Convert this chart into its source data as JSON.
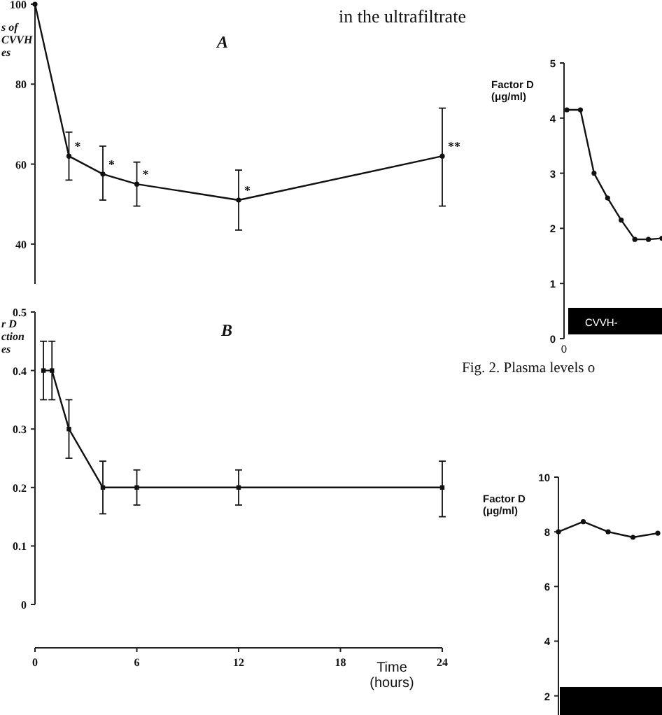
{
  "chart_data": [
    {
      "type": "line",
      "title": "A",
      "ylabel": "s of\nCVVH\nes",
      "xlim": [
        0,
        24
      ],
      "ylim": [
        30,
        100
      ],
      "yticks": [
        40,
        60,
        80,
        100
      ],
      "tick_labels": "y",
      "marker": "circle",
      "x": [
        0,
        2,
        4,
        6,
        12,
        24
      ],
      "series": [
        {
          "color": "#111111",
          "values": [
            100,
            62,
            57.5,
            55,
            51,
            62
          ],
          "errors": [
            null,
            [
              56,
              68
            ],
            [
              51,
              64.5
            ],
            [
              49.5,
              60.5
            ],
            [
              43.5,
              58.5
            ],
            [
              49.5,
              74
            ]
          ]
        }
      ],
      "annotations": [
        {
          "text": "*",
          "x": 2,
          "y": 62
        },
        {
          "text": "*",
          "x": 4,
          "y": 57.5
        },
        {
          "text": "*",
          "x": 6,
          "y": 55
        },
        {
          "text": "*",
          "x": 12,
          "y": 51
        },
        {
          "text": "**",
          "x": 24,
          "y": 62
        }
      ]
    },
    {
      "type": "line",
      "title": "B",
      "ylabel": "r D\nction\nes",
      "xlabel": "Time\n(hours)",
      "xlim": [
        0,
        24
      ],
      "ylim": [
        0,
        0.5
      ],
      "xticks": [
        0,
        6,
        12,
        18,
        24
      ],
      "yticks": [
        0,
        0.1,
        0.2,
        0.3,
        0.4,
        0.5
      ],
      "marker": "square",
      "x": [
        0.5,
        1,
        2,
        4,
        6,
        12,
        24
      ],
      "series": [
        {
          "color": "#111111",
          "values": [
            0.4,
            0.4,
            0.3,
            0.2,
            0.2,
            0.2,
            0.2
          ],
          "errors": [
            [
              0.35,
              0.45
            ],
            [
              0.35,
              0.45
            ],
            [
              0.25,
              0.35
            ],
            [
              0.155,
              0.245
            ],
            [
              0.17,
              0.23
            ],
            [
              0.17,
              0.23
            ],
            [
              0.15,
              0.245
            ]
          ]
        }
      ]
    },
    {
      "type": "line",
      "ylabel": "Factor D\n(μg/ml)",
      "ylim": [
        0,
        5
      ],
      "yticks": [
        0,
        1,
        2,
        3,
        4,
        5
      ],
      "marker": "circle",
      "categories": [
        null,
        null,
        null,
        null,
        null,
        null,
        null,
        null
      ],
      "series": [
        {
          "color": "#111111",
          "values": [
            4.15,
            4.15,
            3.0,
            2.55,
            2.15,
            1.8,
            1.8,
            1.82
          ]
        }
      ],
      "annotations": [
        "in the ultrafiltrate",
        "Fig. 2. Plasma levels o",
        "0",
        "CVVH-"
      ]
    },
    {
      "type": "line",
      "ylabel": "Factor D\n(μg/ml)",
      "ylim": [
        1.3,
        10
      ],
      "yticks": [
        2,
        4,
        6,
        8,
        10
      ],
      "marker": "circle",
      "categories": [
        null,
        null,
        null,
        null,
        null
      ],
      "series": [
        {
          "color": "#111111",
          "values": [
            8.0,
            8.37,
            8.0,
            7.8,
            7.95
          ]
        }
      ]
    }
  ]
}
